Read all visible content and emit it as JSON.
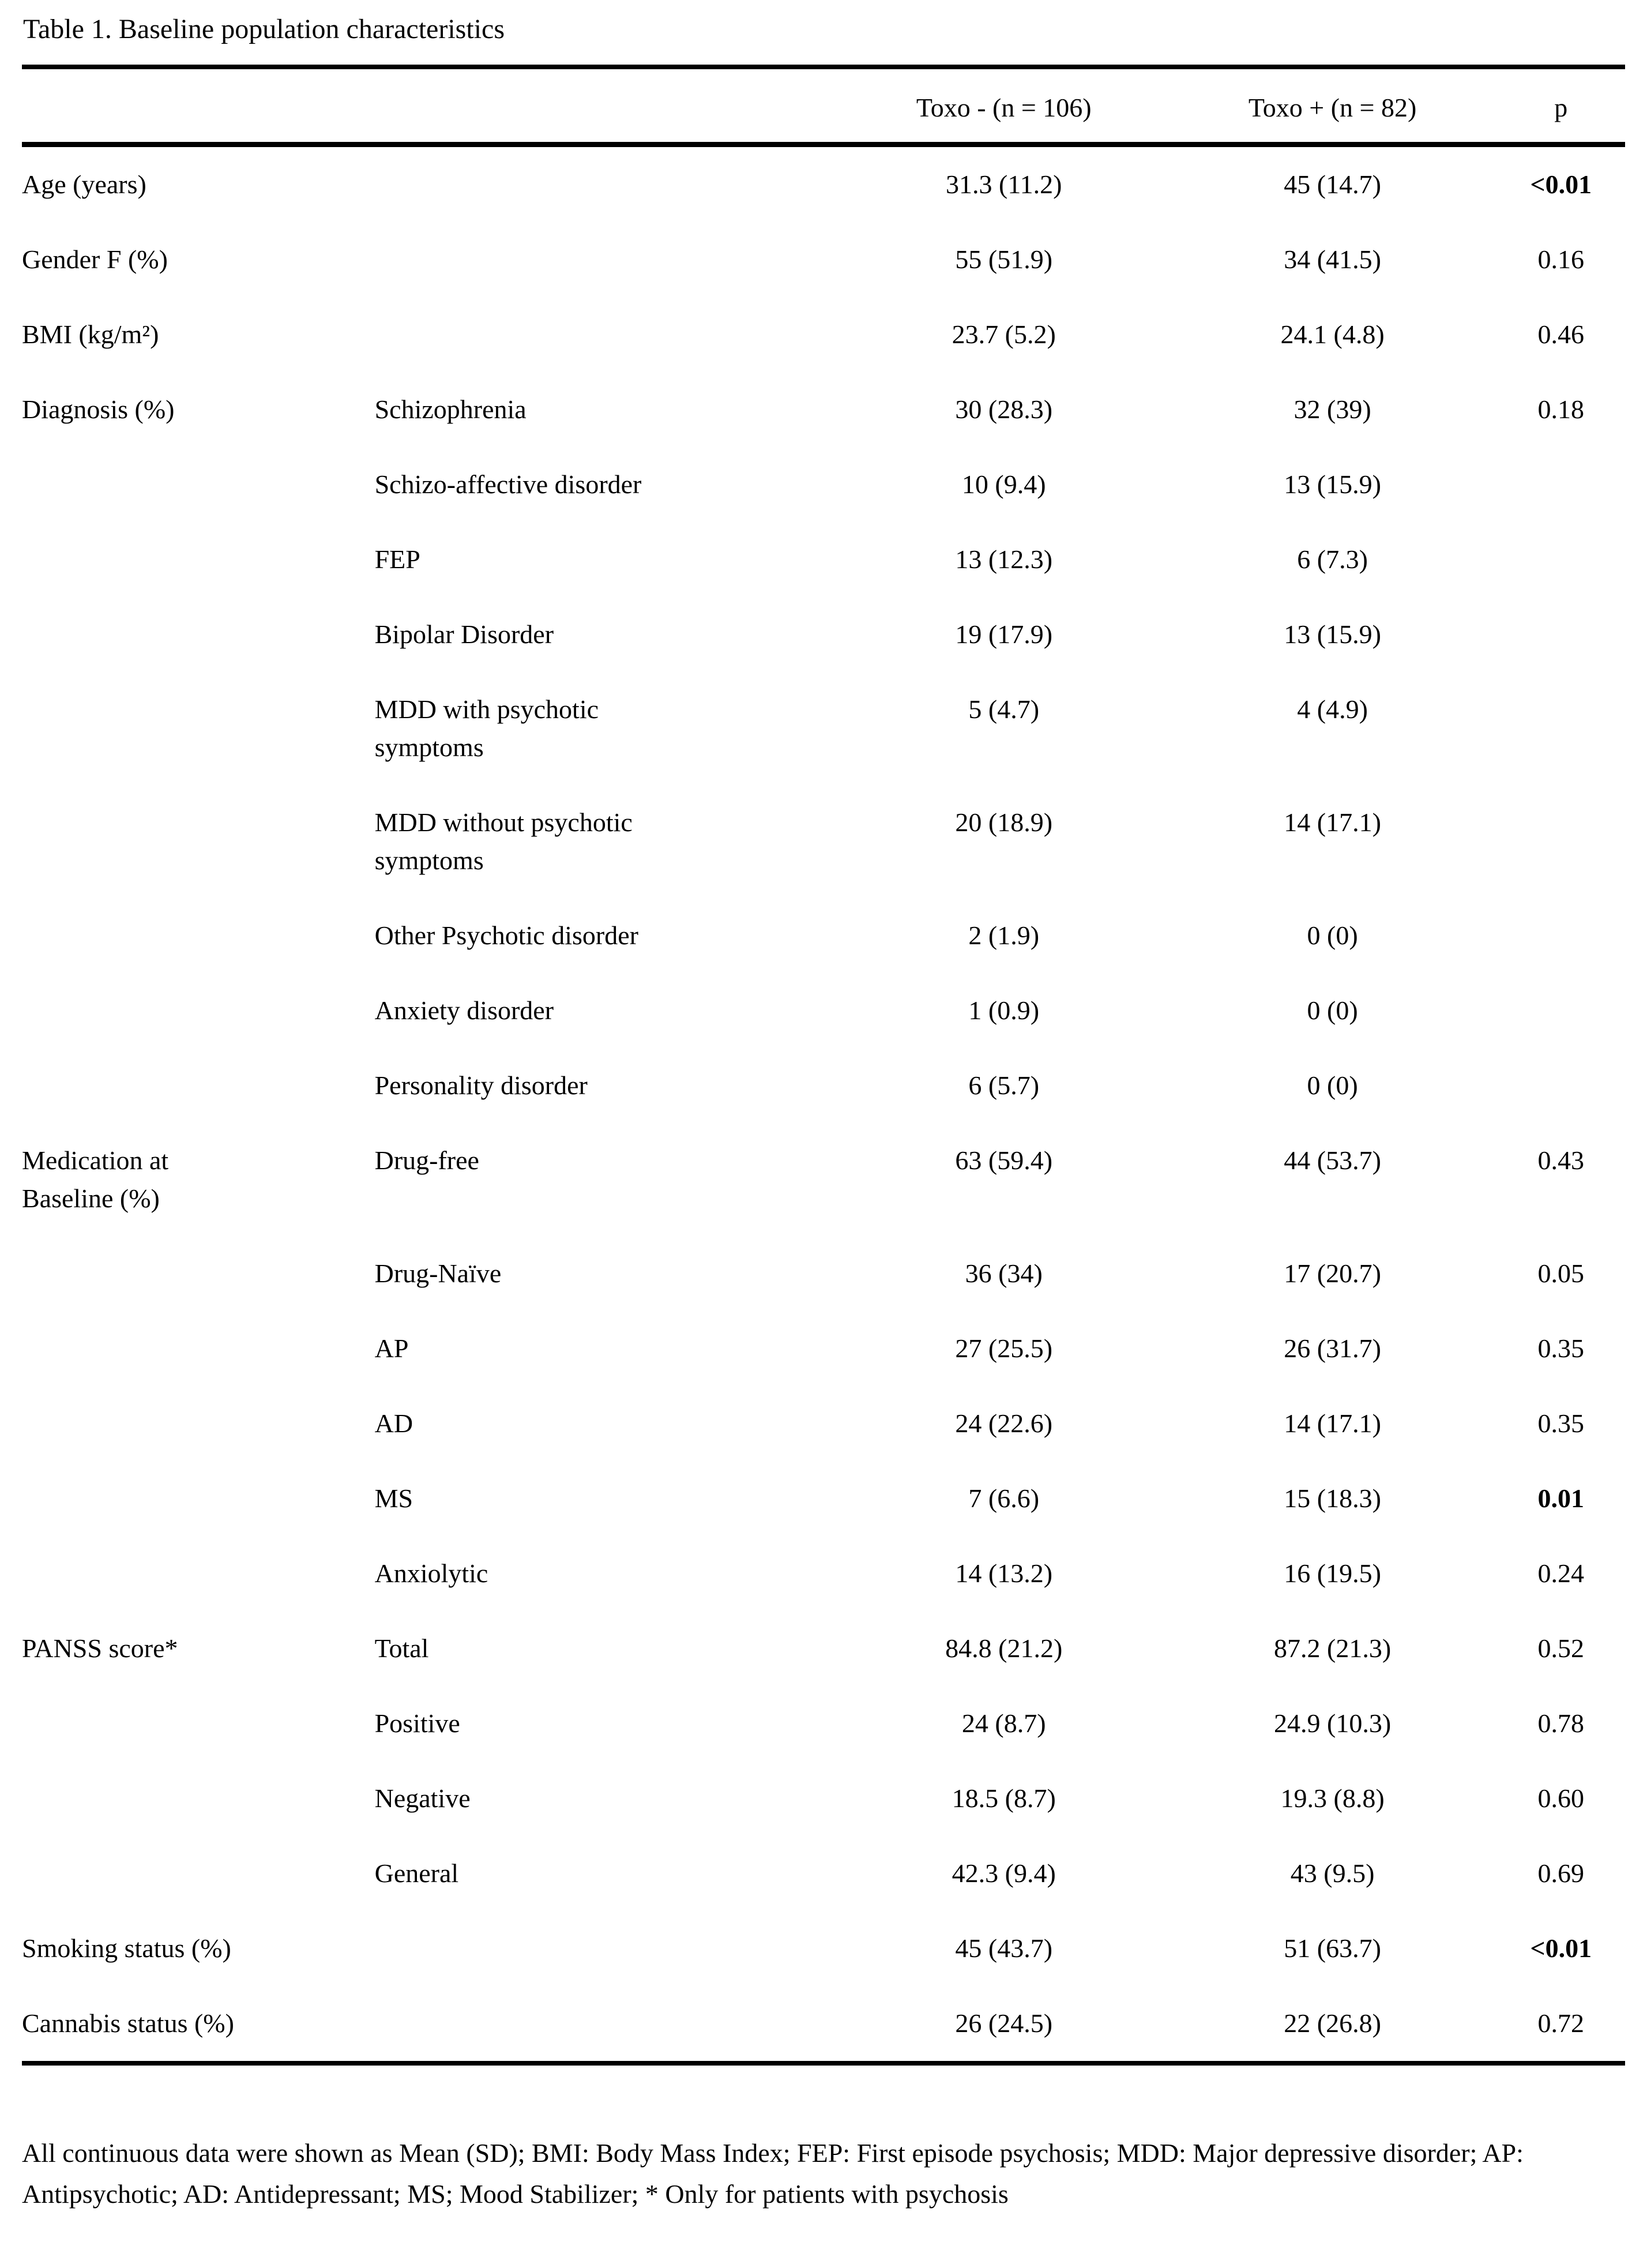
{
  "page_title": "Table 1. Baseline population characteristics",
  "table": {
    "header": {
      "col_toxo_negative": "Toxo - (n = 106)",
      "col_toxo_positive": "Toxo + (n = 82)",
      "col_p": "p"
    },
    "rows": [
      {
        "label": "Age (years)",
        "sublabel": "",
        "toxo_negative": "31.3 (11.2)",
        "toxo_positive": "45 (14.7)",
        "p": "<0.01",
        "p_bold": true
      },
      {
        "label": "Gender F (%)",
        "sublabel": "",
        "toxo_negative": "55 (51.9)",
        "toxo_positive": "34 (41.5)",
        "p": "0.16",
        "p_bold": false
      },
      {
        "label": "BMI (kg/m²)",
        "sublabel": "",
        "toxo_negative": "23.7 (5.2)",
        "toxo_positive": "24.1 (4.8)",
        "p": "0.46",
        "p_bold": false
      },
      {
        "label": "Diagnosis (%)",
        "sublabel": "Schizophrenia",
        "toxo_negative": "30 (28.3)",
        "toxo_positive": "32 (39)",
        "p": "0.18",
        "p_bold": false
      },
      {
        "label": "",
        "sublabel": "Schizo-affective disorder",
        "toxo_negative": "10 (9.4)",
        "toxo_positive": "13 (15.9)",
        "p": "",
        "p_bold": false
      },
      {
        "label": "",
        "sublabel": "FEP",
        "toxo_negative": "13 (12.3)",
        "toxo_positive": "6 (7.3)",
        "p": "",
        "p_bold": false
      },
      {
        "label": "",
        "sublabel": "Bipolar Disorder",
        "toxo_negative": "19 (17.9)",
        "toxo_positive": "13 (15.9)",
        "p": "",
        "p_bold": false
      },
      {
        "label": "",
        "sublabel": "MDD with psychotic\nsymptoms",
        "toxo_negative": "5 (4.7)",
        "toxo_positive": "4 (4.9)",
        "p": "",
        "p_bold": false
      },
      {
        "label": "",
        "sublabel": "MDD without psychotic\nsymptoms",
        "toxo_negative": "20 (18.9)",
        "toxo_positive": "14 (17.1)",
        "p": "",
        "p_bold": false
      },
      {
        "label": "",
        "sublabel": "Other Psychotic disorder",
        "toxo_negative": "2 (1.9)",
        "toxo_positive": "0 (0)",
        "p": "",
        "p_bold": false
      },
      {
        "label": "",
        "sublabel": "Anxiety disorder",
        "toxo_negative": "1 (0.9)",
        "toxo_positive": "0 (0)",
        "p": "",
        "p_bold": false
      },
      {
        "label": "",
        "sublabel": "Personality disorder",
        "toxo_negative": "6 (5.7)",
        "toxo_positive": "0 (0)",
        "p": "",
        "p_bold": false
      },
      {
        "label": "Medication at\nBaseline (%)",
        "sublabel": "Drug-free",
        "toxo_negative": "63 (59.4)",
        "toxo_positive": "44 (53.7)",
        "p": "0.43",
        "p_bold": false
      },
      {
        "label": "",
        "sublabel": "Drug-Naïve",
        "toxo_negative": "36 (34)",
        "toxo_positive": "17 (20.7)",
        "p": "0.05",
        "p_bold": false
      },
      {
        "label": "",
        "sublabel": "AP",
        "toxo_negative": "27 (25.5)",
        "toxo_positive": "26 (31.7)",
        "p": "0.35",
        "p_bold": false
      },
      {
        "label": "",
        "sublabel": "AD",
        "toxo_negative": "24 (22.6)",
        "toxo_positive": "14 (17.1)",
        "p": "0.35",
        "p_bold": false
      },
      {
        "label": "",
        "sublabel": "MS",
        "toxo_negative": "7 (6.6)",
        "toxo_positive": "15 (18.3)",
        "p": "0.01",
        "p_bold": true
      },
      {
        "label": "",
        "sublabel": "Anxiolytic",
        "toxo_negative": "14 (13.2)",
        "toxo_positive": "16 (19.5)",
        "p": "0.24",
        "p_bold": false
      },
      {
        "label": "PANSS score*",
        "sublabel": "Total",
        "toxo_negative": "84.8 (21.2)",
        "toxo_positive": "87.2 (21.3)",
        "p": "0.52",
        "p_bold": false
      },
      {
        "label": "",
        "sublabel": "Positive",
        "toxo_negative": "24 (8.7)",
        "toxo_positive": "24.9 (10.3)",
        "p": "0.78",
        "p_bold": false
      },
      {
        "label": "",
        "sublabel": "Negative",
        "toxo_negative": "18.5 (8.7)",
        "toxo_positive": "19.3 (8.8)",
        "p": "0.60",
        "p_bold": false
      },
      {
        "label": "",
        "sublabel": "General",
        "toxo_negative": "42.3 (9.4)",
        "toxo_positive": "43 (9.5)",
        "p": "0.69",
        "p_bold": false
      },
      {
        "label": "Smoking status (%)",
        "sublabel": "",
        "toxo_negative": "45 (43.7)",
        "toxo_positive": "51 (63.7)",
        "p": "<0.01",
        "p_bold": true
      },
      {
        "label": "Cannabis status (%)",
        "sublabel": "",
        "toxo_negative": "26 (24.5)",
        "toxo_positive": "22 (26.8)",
        "p": "0.72",
        "p_bold": false
      }
    ]
  },
  "footnote": "All continuous data were shown as Mean (SD); BMI: Body Mass Index; FEP: First episode psychosis; MDD: Major depressive disorder; AP: Antipsychotic; AD: Antidepressant; MS; Mood Stabilizer; * Only for patients with psychosis"
}
